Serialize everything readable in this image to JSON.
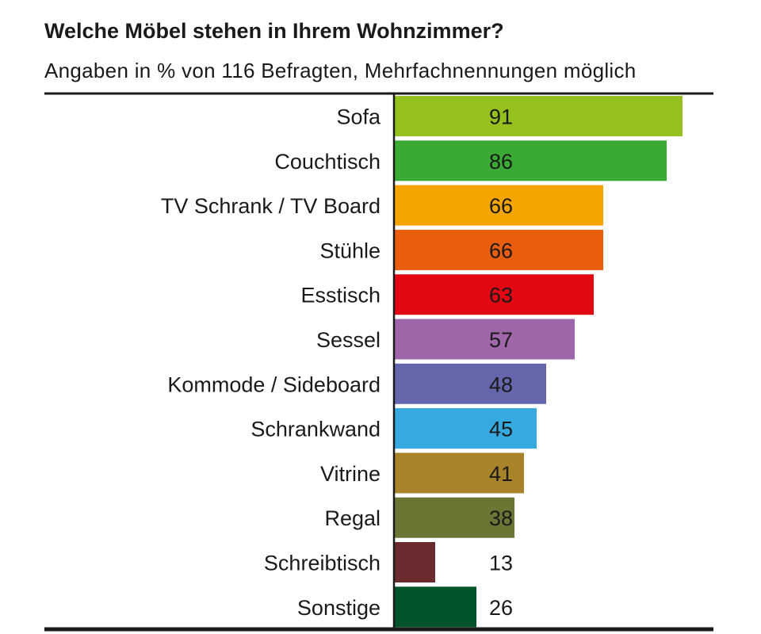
{
  "chart_data": {
    "type": "bar",
    "orientation": "horizontal",
    "title": "Welche Möbel stehen in Ihrem Wohnzimmer?",
    "subtitle": "Angaben in % von 116 Befragten, Mehrfachnennungen möglich",
    "categories": [
      "Sofa",
      "Couchtisch",
      "TV Schrank / TV Board",
      "Stühle",
      "Esstisch",
      "Sessel",
      "Kommode / Sideboard",
      "Schrankwand",
      "Vitrine",
      "Regal",
      "Schreibtisch",
      "Sonstige"
    ],
    "values": [
      91,
      86,
      66,
      66,
      63,
      57,
      48,
      45,
      41,
      38,
      13,
      26
    ],
    "value_labels": [
      "91",
      "86",
      "66",
      "66",
      "63",
      "57",
      "48",
      "45",
      "41",
      "38",
      "13",
      "26"
    ],
    "colors": [
      "#95c11f",
      "#3aaa35",
      "#f6a500",
      "#e95d0f",
      "#e30613",
      "#a066aa",
      "#6567ad",
      "#36a9e1",
      "#a8832a",
      "#6b7534",
      "#6b2b2e",
      "#00542a"
    ],
    "xlim": [
      0,
      100
    ],
    "grid": false,
    "legend": "none"
  }
}
